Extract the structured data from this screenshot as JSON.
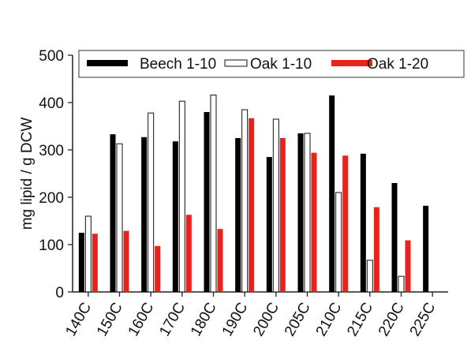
{
  "chart_data": {
    "type": "bar",
    "ylabel": "mg lipid / g  DCW",
    "xlabel": "",
    "ylim": [
      0,
      500
    ],
    "y_ticks": [
      0,
      100,
      200,
      300,
      400,
      500
    ],
    "categories": [
      "140C",
      "150C",
      "160C",
      "170C",
      "180C",
      "190C",
      "200C",
      "205C",
      "210C",
      "215C",
      "220C",
      "225C"
    ],
    "series": [
      {
        "name": "Beech 1-10",
        "color": "#000000",
        "style": "solid",
        "values": [
          125,
          333,
          327,
          318,
          380,
          325,
          285,
          335,
          415,
          292,
          230,
          182
        ]
      },
      {
        "name": "Oak 1-10",
        "color": "#ffffff",
        "style": "outline",
        "values": [
          160,
          313,
          378,
          403,
          416,
          385,
          365,
          335,
          210,
          67,
          33,
          null
        ]
      },
      {
        "name": "Oak 1-20",
        "color": "#e8231e",
        "style": "solid",
        "values": [
          123,
          129,
          97,
          163,
          133,
          367,
          325,
          294,
          288,
          179,
          109,
          null
        ]
      }
    ],
    "legend_position": "top-inside",
    "grid": false
  }
}
